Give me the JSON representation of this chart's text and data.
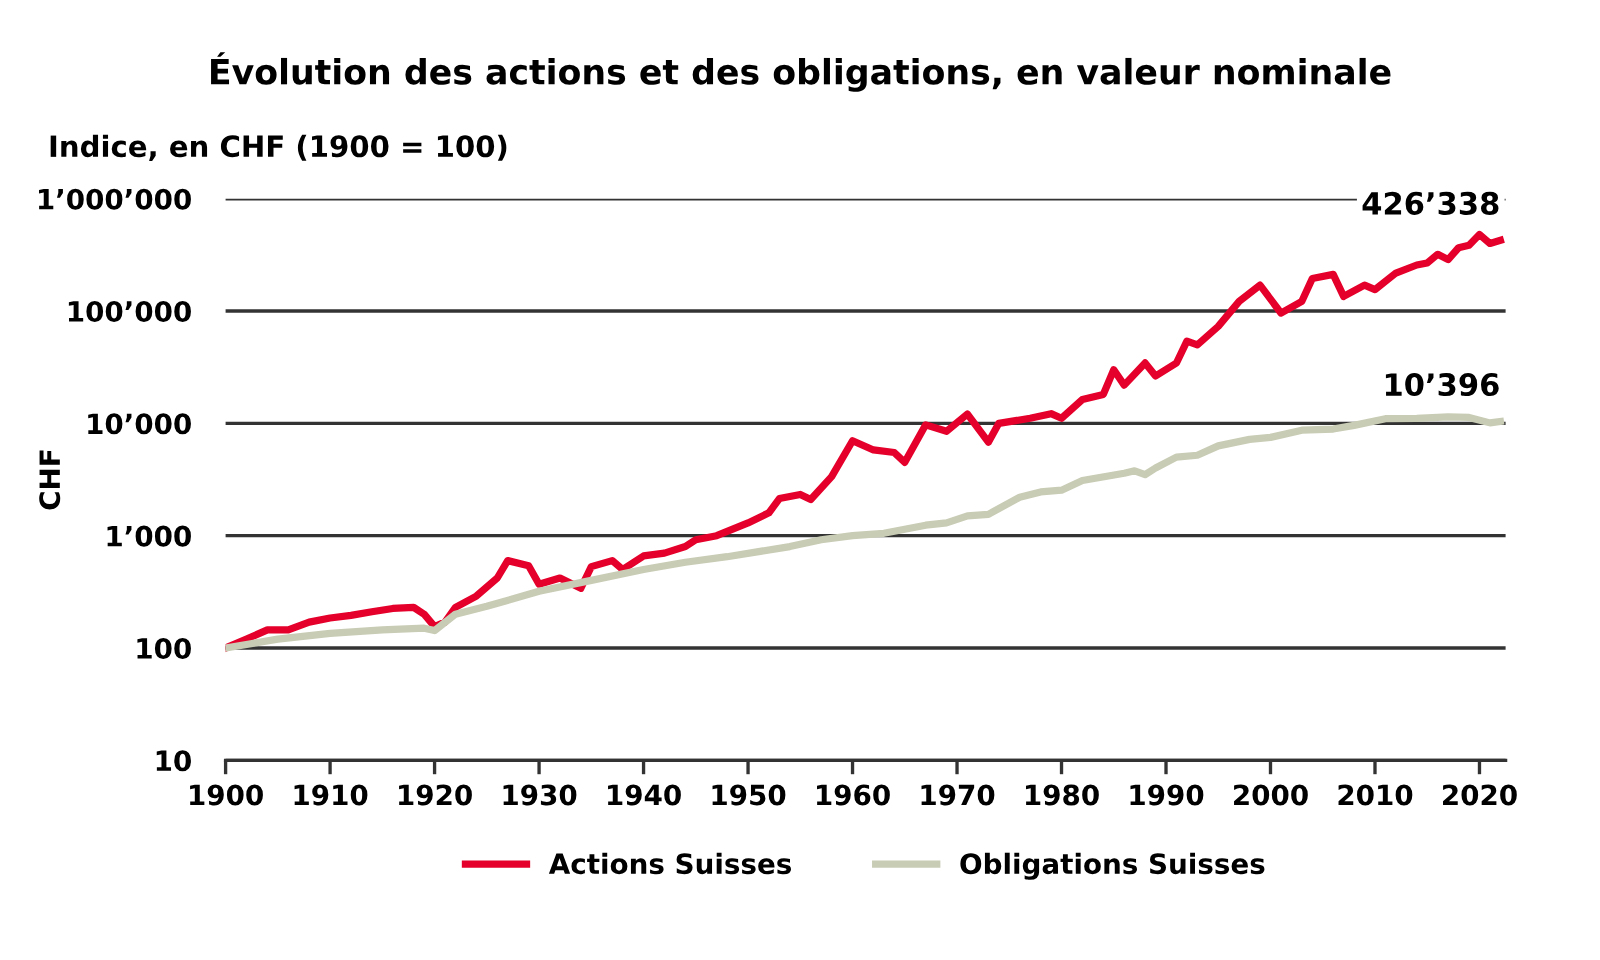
{
  "chart_data": {
    "type": "line",
    "title": "Évolution des actions et des obligations, en valeur nominale",
    "subtitle": "Indice, en CHF (1900 = 100)",
    "ylabel": "CHF",
    "log": true,
    "grid": "y",
    "legend": "bottom",
    "line_style": "solid",
    "marker": "none",
    "xlim": [
      1900,
      2022.5
    ],
    "xticks": [
      1900,
      1910,
      1920,
      1930,
      1940,
      1950,
      1960,
      1970,
      1980,
      1990,
      2000,
      2010,
      2020
    ],
    "ylim": [
      10,
      1000000
    ],
    "yticks": [
      {
        "value": 10,
        "label": "10"
      },
      {
        "value": 100,
        "label": "100"
      },
      {
        "value": 1000,
        "label": "1’000"
      },
      {
        "value": 10000,
        "label": "10’000"
      },
      {
        "value": 100000,
        "label": "100’000"
      },
      {
        "value": 1000000,
        "label": "1’000’000"
      }
    ],
    "series": [
      {
        "name": "Actions Suisses",
        "color": "#e4002b",
        "x": [
          1900,
          1902,
          1904,
          1906,
          1908,
          1910,
          1912,
          1914,
          1916,
          1918,
          1919,
          1920,
          1921,
          1922,
          1924,
          1926,
          1927,
          1929,
          1930,
          1932,
          1934,
          1935,
          1937,
          1938,
          1940,
          1942,
          1944,
          1945,
          1947,
          1950,
          1952,
          1953,
          1955,
          1956,
          1958,
          1960,
          1962,
          1964,
          1965,
          1967,
          1969,
          1971,
          1973,
          1974,
          1977,
          1979,
          1980,
          1982,
          1984,
          1985,
          1986,
          1988,
          1989,
          1991,
          1992,
          1993,
          1995,
          1997,
          1999,
          2001,
          2003,
          2004,
          2006,
          2007,
          2009,
          2010,
          2012,
          2014,
          2015,
          2016,
          2017,
          2018,
          2019,
          2020,
          2021,
          2022
        ],
        "values": [
          100,
          120,
          145,
          145,
          170,
          185,
          195,
          210,
          225,
          230,
          200,
          155,
          170,
          230,
          290,
          420,
          600,
          540,
          370,
          420,
          340,
          530,
          600,
          500,
          660,
          700,
          800,
          920,
          1000,
          1300,
          1600,
          2140,
          2330,
          2100,
          3360,
          7000,
          5800,
          5500,
          4500,
          9700,
          8500,
          12100,
          6800,
          10000,
          11100,
          12200,
          11100,
          16300,
          18100,
          30000,
          21900,
          34500,
          26400,
          34500,
          54000,
          50000,
          73000,
          122000,
          170000,
          96000,
          122000,
          195000,
          212000,
          135000,
          170000,
          155000,
          218000,
          257000,
          268000,
          320000,
          287000,
          366000,
          385000,
          480000,
          400000,
          426338
        ]
      },
      {
        "name": "Obligations Suisses",
        "color": "#c8ccb4",
        "x": [
          1900,
          1905,
          1910,
          1915,
          1919,
          1920,
          1922,
          1925,
          1930,
          1935,
          1940,
          1944,
          1948,
          1954,
          1957,
          1960,
          1963,
          1967,
          1969,
          1971,
          1973,
          1976,
          1978,
          1980,
          1982,
          1986,
          1987,
          1988,
          1989,
          1991,
          1993,
          1995,
          1998,
          2000,
          2003,
          2006,
          2008,
          2011,
          2014,
          2017,
          2019,
          2021,
          2022
        ],
        "values": [
          100,
          120,
          135,
          145,
          150,
          143,
          200,
          235,
          320,
          400,
          500,
          580,
          650,
          800,
          920,
          1000,
          1050,
          1240,
          1300,
          1500,
          1550,
          2200,
          2450,
          2540,
          3100,
          3600,
          3780,
          3500,
          4000,
          5000,
          5200,
          6300,
          7200,
          7500,
          8700,
          8900,
          9600,
          11000,
          11100,
          11400,
          11300,
          10100,
          10396
        ]
      }
    ],
    "annotations": [
      {
        "text": "426’338",
        "x": 2022,
        "y": 426338
      },
      {
        "text": "10’396",
        "x": 2022,
        "y": 10396
      }
    ]
  }
}
